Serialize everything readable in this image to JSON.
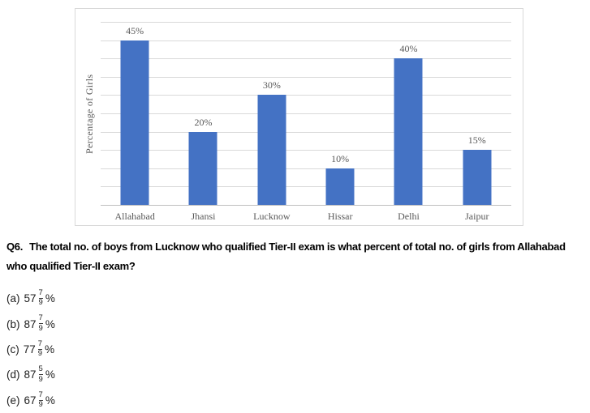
{
  "chart_data": {
    "type": "bar",
    "title": "",
    "xlabel": "",
    "ylabel": "Percentage of Girls",
    "categories": [
      "Allahabad",
      "Jhansi",
      "Lucknow",
      "Hissar",
      "Delhi",
      "Jaipur"
    ],
    "values": [
      45,
      20,
      30,
      10,
      40,
      15
    ],
    "bar_labels": [
      "45%",
      "20%",
      "30%",
      "10%",
      "40%",
      "15%"
    ],
    "ylim": [
      0,
      50
    ],
    "gridline_step": 5,
    "grid": true,
    "legend": false,
    "y_tick_labels_visible": false,
    "bar_color": "#4472C4"
  },
  "colors": {
    "bar": "#4472C4",
    "gridline": "#D9D9D9",
    "axis_line": "#BFBFBF",
    "chart_border": "#D9D9D9",
    "chart_text": "#595959",
    "body_text": "#000000"
  },
  "question": {
    "number": "Q6.",
    "body": "The total no. of boys from Lucknow who qualified Tier-II exam is what percent of total no. of girls from Allahabad who qualified Tier-II exam?"
  },
  "options": [
    {
      "label": "(a)",
      "whole": "57",
      "num": "7",
      "den": "9",
      "unit": "%"
    },
    {
      "label": "(b)",
      "whole": "87",
      "num": "7",
      "den": "9",
      "unit": "%"
    },
    {
      "label": "(c)",
      "whole": "77",
      "num": "7",
      "den": "9",
      "unit": "%"
    },
    {
      "label": "(d)",
      "whole": "87",
      "num": "5",
      "den": "9",
      "unit": "%"
    },
    {
      "label": "(e)",
      "whole": "67",
      "num": "7",
      "den": "9",
      "unit": "%"
    }
  ]
}
